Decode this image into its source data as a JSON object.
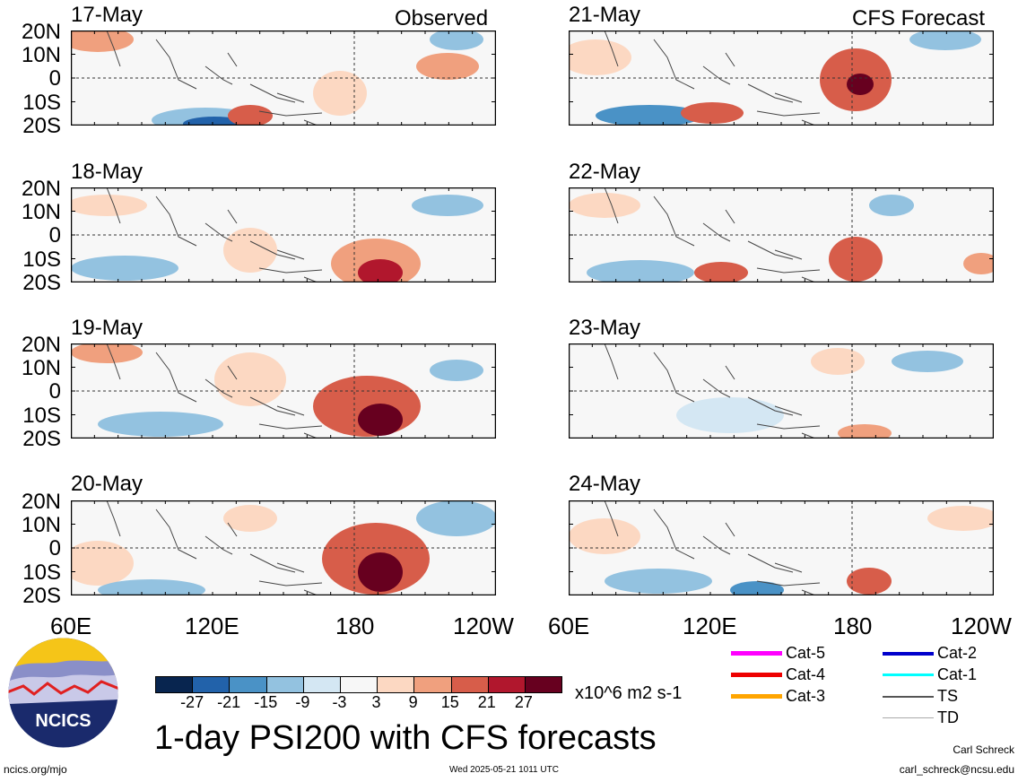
{
  "observed_label": "Observed",
  "forecast_label": "CFS Forecast",
  "panels_left": [
    {
      "date": "17-May"
    },
    {
      "date": "18-May"
    },
    {
      "date": "19-May"
    },
    {
      "date": "20-May"
    }
  ],
  "panels_right": [
    {
      "date": "21-May"
    },
    {
      "date": "22-May"
    },
    {
      "date": "23-May"
    },
    {
      "date": "24-May"
    }
  ],
  "lat_labels": [
    "20N",
    "10N",
    "0",
    "10S",
    "20S"
  ],
  "lon_labels": [
    "60E",
    "120E",
    "180",
    "120W"
  ],
  "colorbar": {
    "ticks": [
      "-27",
      "-21",
      "-15",
      "-9",
      "-3",
      "3",
      "9",
      "15",
      "21",
      "27"
    ],
    "colors": [
      "#08254f",
      "#2262aa",
      "#4a92c6",
      "#93c2e0",
      "#d4e7f3",
      "#f7f7f7",
      "#fcd8c2",
      "#f0a07e",
      "#d75d4a",
      "#b1172d",
      "#67001f"
    ],
    "units": "x10^6 m2 s-1"
  },
  "title": "1-day PSI200 with CFS forecasts",
  "footer": {
    "left": "ncics.org/mjo",
    "center": "Wed 2025-05-21 1011 UTC",
    "author": "Carl Schreck",
    "email": "carl_schreck@ncsu.edu"
  },
  "logo_text": "NCICS",
  "legend": [
    {
      "label": "Cat-5",
      "color": "#ff00ff"
    },
    {
      "label": "Cat-4",
      "color": "#ee0000"
    },
    {
      "label": "Cat-3",
      "color": "#ffa500"
    },
    {
      "label": "Cat-2",
      "color": "#0000cc"
    },
    {
      "label": "Cat-1",
      "color": "#00ffff"
    },
    {
      "label": "TS",
      "color": "#555555"
    },
    {
      "label": "TD",
      "color": "#aaaaaa"
    }
  ]
}
